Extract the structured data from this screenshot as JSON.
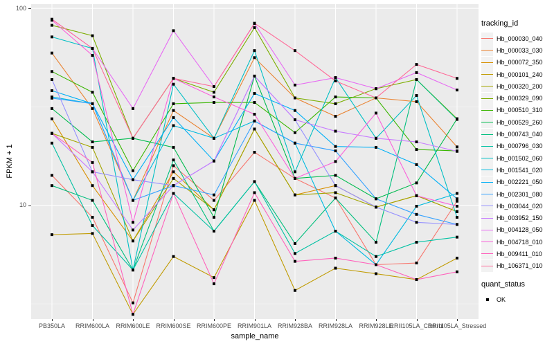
{
  "figure": {
    "y_axis": {
      "title": "FPKM + 1"
    },
    "x_axis": {
      "title": "sample_name"
    },
    "legend": {
      "tracking_title": "tracking_id",
      "quant_title": "quant_status",
      "quant_items": [
        {
          "label": "OK",
          "marker": "black-square"
        }
      ]
    }
  },
  "chart_data": {
    "type": "line",
    "title": "",
    "xlabel": "sample_name",
    "ylabel": "FPKM + 1",
    "y_scale": "log10",
    "ylim": [
      2.65,
      105
    ],
    "y_ticks": [
      {
        "label": "100",
        "value": 100
      },
      {
        "label": "10",
        "value": 10
      }
    ],
    "y_minor_gridlines": [
      31.62,
      3.162
    ],
    "grid": "on",
    "panel_background": "#EBEBEB",
    "gridline_color": "#FFFFFF",
    "point_marker": "black-square",
    "legend_position": "right",
    "categories": [
      "PB350LA",
      "RRIM600LA",
      "RRIM600LE",
      "RRIM600SE",
      "RRIM600PE",
      "RRIM901LA",
      "RRIM928BA",
      "RRIM928LA",
      "RRIM928LE",
      "RRII105LA_Control",
      "RRII105LA_Stressed"
    ],
    "series": [
      {
        "name": "Hb_000030_040",
        "color": "#F8766D",
        "values": [
          14.2,
          8.7,
          3.2,
          15.9,
          10.6,
          18.6,
          13.7,
          10.9,
          5.0,
          5.1,
          10.5
        ]
      },
      {
        "name": "Hb_000033_030",
        "color": "#EA8331",
        "values": [
          59.3,
          31.0,
          10.6,
          30.3,
          21.9,
          56.2,
          35.1,
          28.3,
          35.1,
          33.6,
          19.8
        ]
      },
      {
        "name": "Hb_000072_350",
        "color": "#D89000",
        "values": [
          27.5,
          12.6,
          6.6,
          14.8,
          9.5,
          24.4,
          11.3,
          12.6,
          9.8,
          11.2,
          9.3
        ]
      },
      {
        "name": "Hb_000101_240",
        "color": "#C09B00",
        "values": [
          7.1,
          7.2,
          2.8,
          5.5,
          4.3,
          10.6,
          3.7,
          4.8,
          4.5,
          4.2,
          5.4
        ]
      },
      {
        "name": "Hb_000320_200",
        "color": "#A3A500",
        "values": [
          23.2,
          19.7,
          6.6,
          13.7,
          9.5,
          24.4,
          11.3,
          11.6,
          9.8,
          11.2,
          9.3
        ]
      },
      {
        "name": "Hb_000329_090",
        "color": "#7CAE00",
        "values": [
          82.0,
          72.6,
          21.9,
          44.1,
          37.5,
          79.8,
          35.1,
          32.8,
          39.1,
          43.5,
          27.5
        ]
      },
      {
        "name": "Hb_000510_310",
        "color": "#39B600",
        "values": [
          47.8,
          37.5,
          15.0,
          32.8,
          33.3,
          33.3,
          23.4,
          35.5,
          35.1,
          19.2,
          18.9
        ]
      },
      {
        "name": "Hb_000529_260",
        "color": "#00BB4E",
        "values": [
          31.0,
          21.0,
          21.9,
          19.7,
          8.7,
          45.3,
          13.7,
          14.2,
          10.8,
          13.0,
          27.5
        ]
      },
      {
        "name": "Hb_000743_040",
        "color": "#00BF7D",
        "values": [
          12.6,
          10.6,
          4.7,
          17.0,
          7.4,
          13.2,
          6.4,
          10.9,
          6.5,
          43.5,
          27.3
        ]
      },
      {
        "name": "Hb_000796_030",
        "color": "#00C1A3",
        "values": [
          20.7,
          7.9,
          4.7,
          11.5,
          7.4,
          13.2,
          5.7,
          7.4,
          5.5,
          6.5,
          6.9
        ]
      },
      {
        "name": "Hb_001502_060",
        "color": "#00BFC4",
        "values": [
          71.6,
          62.6,
          4.7,
          41.2,
          21.9,
          61.0,
          14.8,
          44.5,
          21.9,
          36.1,
          8.7
        ]
      },
      {
        "name": "Hb_001541_020",
        "color": "#00BAE0",
        "values": [
          35.5,
          32.8,
          10.6,
          25.4,
          21.9,
          26.8,
          20.7,
          7.4,
          5.0,
          9.9,
          11.5
        ]
      },
      {
        "name": "Hb_002221_050",
        "color": "#00B0F6",
        "values": [
          38.2,
          32.8,
          13.5,
          27.9,
          16.8,
          37.0,
          30.3,
          19.9,
          19.7,
          16.1,
          10.8
        ]
      },
      {
        "name": "Hb_002301_080",
        "color": "#35A2FF",
        "values": [
          35.0,
          32.8,
          10.6,
          12.6,
          11.3,
          26.8,
          20.7,
          18.9,
          10.8,
          9.0,
          8.0
        ]
      },
      {
        "name": "Hb_003044_020",
        "color": "#9590FF",
        "values": [
          43.5,
          14.8,
          13.5,
          12.6,
          16.8,
          45.3,
          27.2,
          12.6,
          9.8,
          8.2,
          8.0
        ]
      },
      {
        "name": "Hb_003952_150",
        "color": "#C77CFF",
        "values": [
          23.2,
          14.8,
          7.5,
          12.6,
          16.8,
          45.3,
          27.2,
          23.8,
          21.9,
          21.0,
          18.8
        ]
      },
      {
        "name": "Hb_004128_050",
        "color": "#E76BF3",
        "values": [
          88.0,
          62.6,
          31.0,
          77.0,
          40.1,
          83.7,
          40.8,
          44.5,
          39.1,
          47.2,
          38.5
        ]
      },
      {
        "name": "Hb_004718_010",
        "color": "#FA62DB",
        "values": [
          87.0,
          57.7,
          8.2,
          44.1,
          35.5,
          29.0,
          13.7,
          16.7,
          29.4,
          11.2,
          9.9
        ]
      },
      {
        "name": "Hb_009411_010",
        "color": "#FF62BC",
        "values": [
          23.2,
          16.5,
          2.8,
          11.5,
          4.0,
          11.6,
          5.2,
          5.4,
          5.0,
          4.2,
          4.6
        ]
      },
      {
        "name": "Hb_106371_010",
        "color": "#FF6A98",
        "values": [
          88.0,
          62.6,
          21.9,
          44.1,
          40.1,
          84.0,
          61.0,
          42.8,
          35.1,
          51.9,
          44.1
        ]
      }
    ]
  }
}
